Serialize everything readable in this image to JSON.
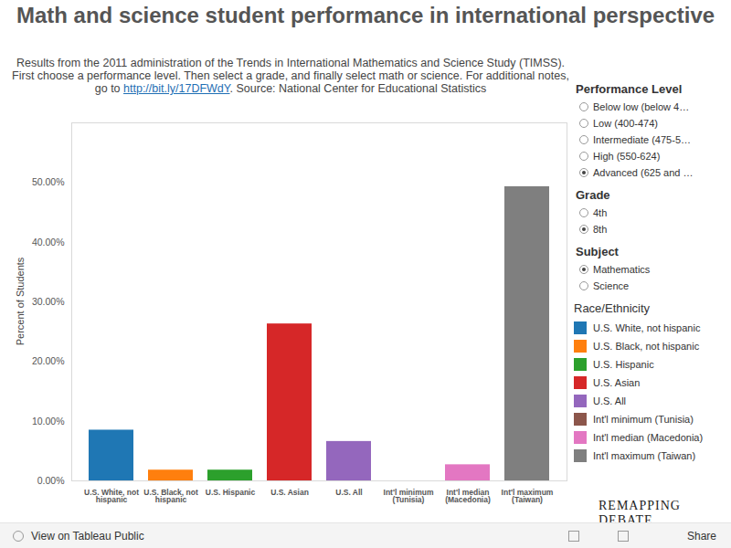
{
  "chart_data": {
    "type": "bar",
    "title": "Math and science student performance in international perspective",
    "y_label": "Percent of Students",
    "categories": [
      "U.S. White, not hispanic",
      "U.S. Black, not hispanic",
      "U.S. Hispanic",
      "U.S. Asian",
      "U.S. All",
      "Int'l minimum (Tunisia)",
      "Int'l median (Macedonia)",
      "Int'l maximum (Taiwan)"
    ],
    "values": [
      8.5,
      1.8,
      1.8,
      26.3,
      6.6,
      0,
      2.7,
      49.3
    ],
    "colors": [
      "#1f77b4",
      "#ff7f0e",
      "#2ca02c",
      "#d62728",
      "#9467bd",
      "#8c564b",
      "#e377c2",
      "#7f7f7f"
    ],
    "ylim": [
      0,
      60
    ],
    "yticks": [
      {
        "value": 0,
        "label": "0.00%"
      },
      {
        "value": 10,
        "label": "10.00%"
      },
      {
        "value": 20,
        "label": "20.00%"
      },
      {
        "value": 30,
        "label": "30.00%"
      },
      {
        "value": 40,
        "label": "40.00%"
      },
      {
        "value": 50,
        "label": "50.00%"
      }
    ],
    "grid": false,
    "legend": "right",
    "legend_title": "Race/Ethnicity"
  },
  "page": {
    "subtitle_before": "Results from the 2011 administration of the Trends in International Mathematics and Science Study (TIMSS). First choose a performance level. Then select a grade, and finally select math or science. For additional notes, go to ",
    "subtitle_link": "http://bit.ly/17DFWdY",
    "subtitle_after": ". Source: National Center for Educational Statistics",
    "filters": [
      {
        "title": "Performance Level",
        "options": [
          "Below low (below 4…",
          "Low (400-474)",
          "Intermediate (475-5…",
          "High (550-624)",
          "Advanced (625 and …"
        ],
        "selected": "Advanced (625 and …"
      },
      {
        "title": "Grade",
        "options": [
          "4th",
          "8th"
        ],
        "selected": "8th"
      },
      {
        "title": "Subject",
        "options": [
          "Mathematics",
          "Science"
        ],
        "selected": "Mathematics"
      }
    ],
    "logo": "REMAPPING DEBATE",
    "toolbar_left": "View on Tableau Public",
    "toolbar_right": "Share"
  }
}
